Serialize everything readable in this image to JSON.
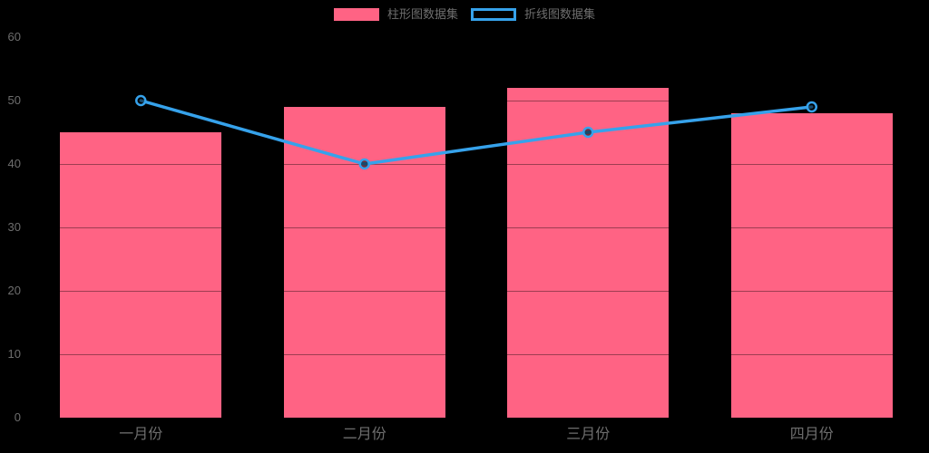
{
  "background": "#000000",
  "text_color": "#6e6e6e",
  "legend": {
    "position": "top",
    "items": [
      {
        "label": "柱形图数据集",
        "type": "bar",
        "color": "#FF6384",
        "swatch": "filled-rect"
      },
      {
        "label": "折线图数据集",
        "type": "line",
        "color": "#36A2EB",
        "swatch": "outlined-rect"
      }
    ]
  },
  "chart_data": {
    "type": "bar+line",
    "categories": [
      "一月份",
      "二月份",
      "三月份",
      "四月份"
    ],
    "series": [
      {
        "name": "柱形图数据集",
        "type": "bar",
        "color": "#FF6384",
        "values": [
          45,
          49,
          52,
          48
        ]
      },
      {
        "name": "折线图数据集",
        "type": "line",
        "color": "#36A2EB",
        "point_style": "hollow-circle",
        "values": [
          50,
          40,
          45,
          49
        ]
      }
    ],
    "title": "",
    "xlabel": "",
    "ylabel": "",
    "y_axis": {
      "min": 0,
      "max": 60,
      "step": 10,
      "ticks": [
        0,
        10,
        20,
        30,
        40,
        50,
        60
      ]
    },
    "grid": {
      "horizontal": true,
      "color": "rgba(0,0,0,0.38)",
      "note": "gridlines only visible where they cross the bars (dark translucent over pink, invisible on black background)"
    },
    "legend_position": "top-center"
  }
}
